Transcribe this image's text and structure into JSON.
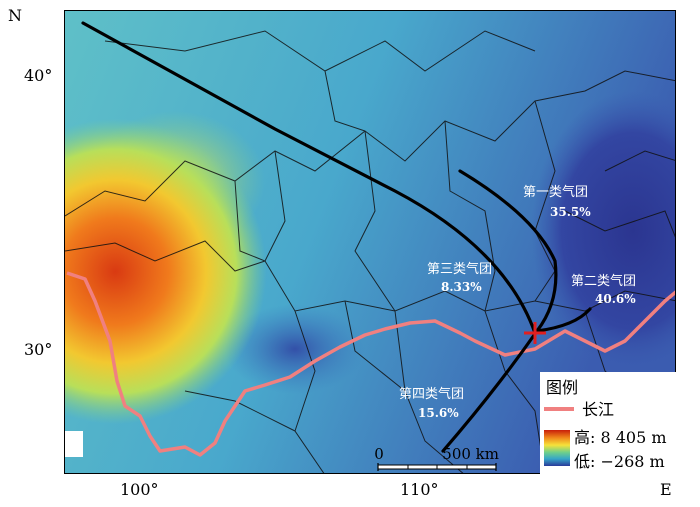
{
  "axis_labels": {
    "north": "N",
    "east": "E",
    "lat_40": "40°",
    "lat_30": "30°",
    "lon_100": "100°",
    "lon_110": "110°"
  },
  "north_arrow": {
    "letter": "N",
    "icon": "north-arrow-icon"
  },
  "clusters": [
    {
      "name": "第一类气团",
      "percent": "35.5%"
    },
    {
      "name": "第二类气团",
      "percent": "40.6%"
    },
    {
      "name": "第三类气团",
      "percent": "8.33%"
    },
    {
      "name": "第四类气团",
      "percent": "15.6%"
    }
  ],
  "scale_bar": {
    "start": "0",
    "end": "500 km"
  },
  "legend": {
    "title": "图例",
    "river_label": "长江",
    "high_label": "高: 8 405 m",
    "low_label": "低: −268 m"
  },
  "colors": {
    "river": "#f08080",
    "trajectory": "#000000",
    "site_marker": "#e02020",
    "elevation_high": "#c81e0a",
    "elevation_low": "#2a3a9a"
  }
}
